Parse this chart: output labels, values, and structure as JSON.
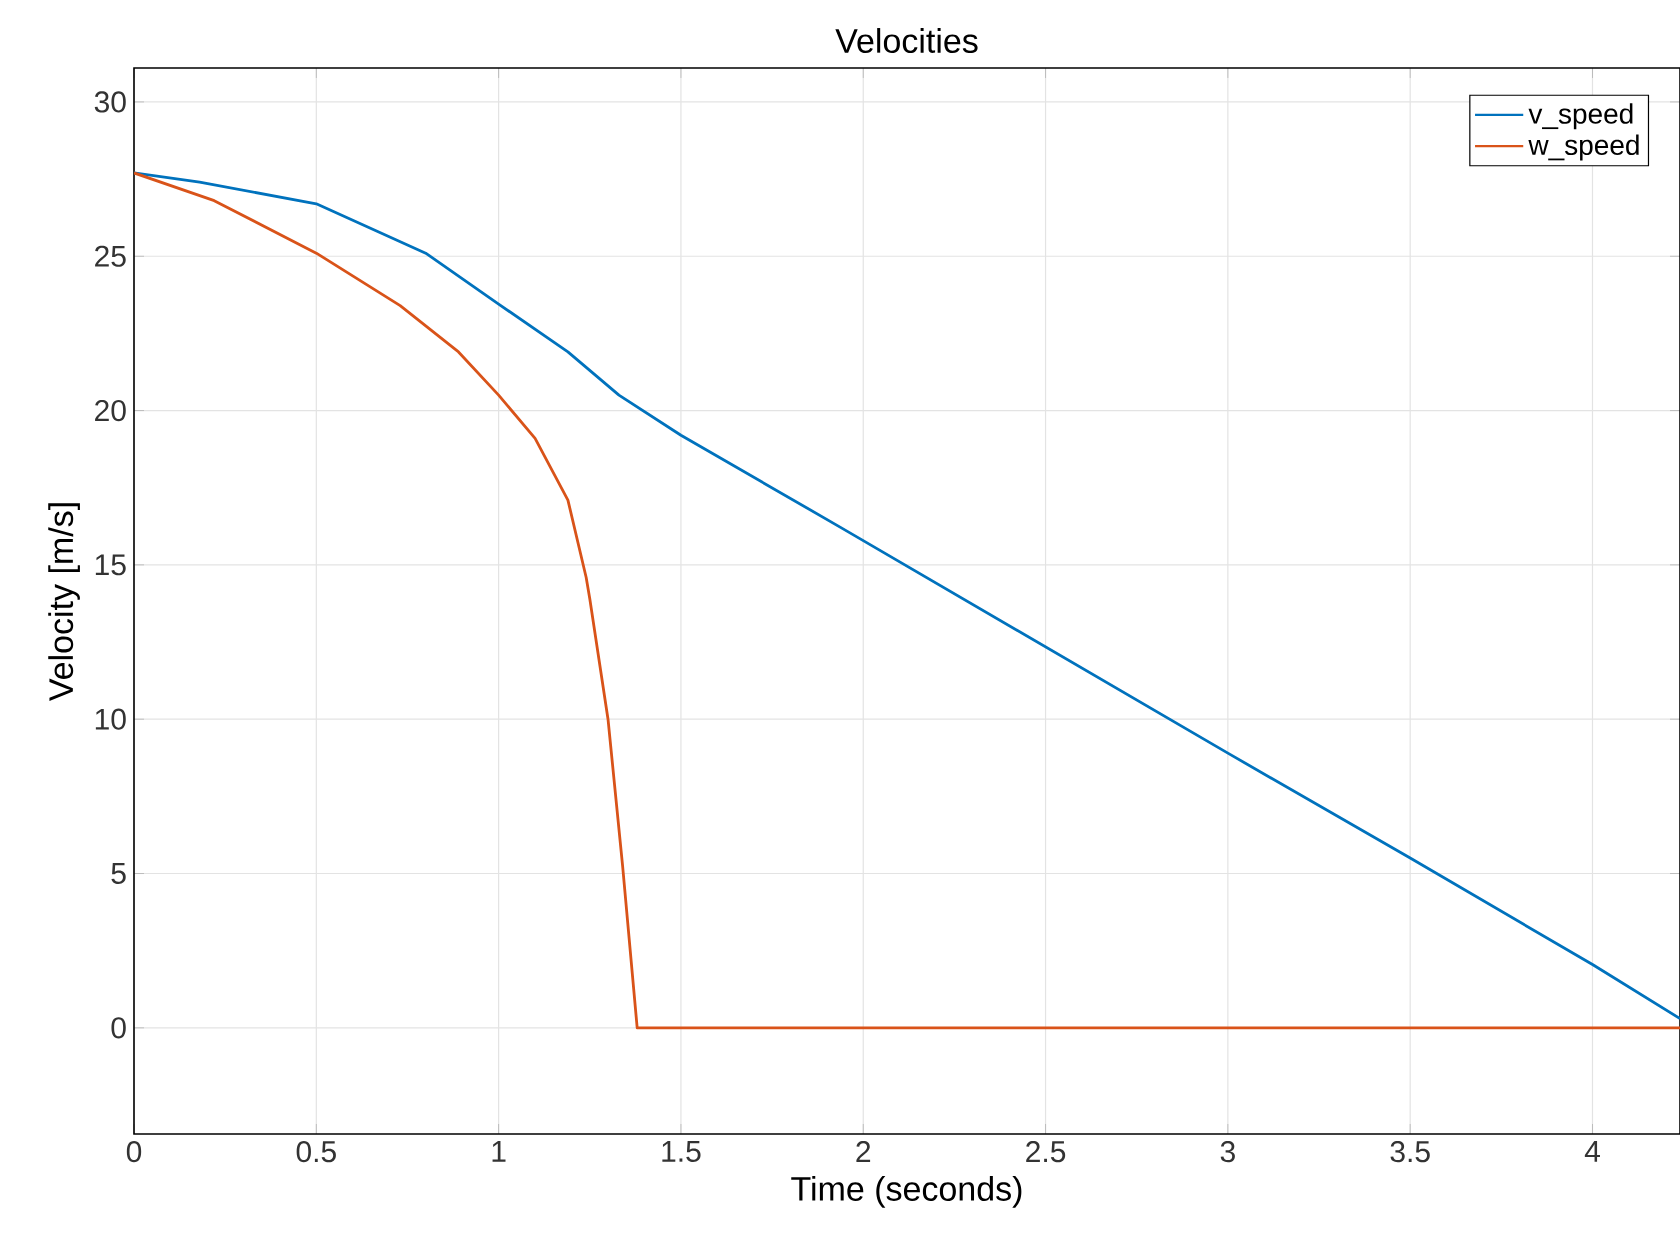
{
  "chart_data": {
    "type": "line",
    "title": "Velocities",
    "xlabel": "Time (seconds)",
    "ylabel": "Velocity [m/s]",
    "xlim": [
      0,
      4.24
    ],
    "ylim": [
      -3.44,
      31.1
    ],
    "xticks": [
      0,
      0.5,
      1,
      1.5,
      2,
      2.5,
      3,
      3.5,
      4
    ],
    "yticks": [
      0,
      5,
      10,
      15,
      20,
      25,
      30
    ],
    "grid": true,
    "legend": "top right",
    "line_style": "solid",
    "marker": "none",
    "series": [
      {
        "name": "v_speed",
        "color": "#0072bd",
        "x": [
          0,
          0.18,
          0.5,
          0.8,
          1.0,
          1.19,
          1.33,
          1.5,
          1.94,
          3.0,
          3.5,
          4.0,
          4.24
        ],
        "values": [
          27.7,
          27.4,
          26.7,
          25.1,
          23.45,
          21.9,
          20.5,
          19.2,
          16.2,
          8.9,
          5.5,
          2.05,
          0.3
        ]
      },
      {
        "name": "w_speed",
        "color": "#d95319",
        "x": [
          0,
          0.22,
          0.5,
          0.73,
          0.89,
          1.0,
          1.1,
          1.19,
          1.24,
          1.25,
          1.3,
          1.34,
          1.38,
          4.24
        ],
        "values": [
          27.7,
          26.8,
          25.1,
          23.4,
          21.9,
          20.5,
          19.1,
          17.1,
          14.6,
          13.9,
          10.0,
          5.25,
          0,
          0
        ]
      }
    ]
  }
}
